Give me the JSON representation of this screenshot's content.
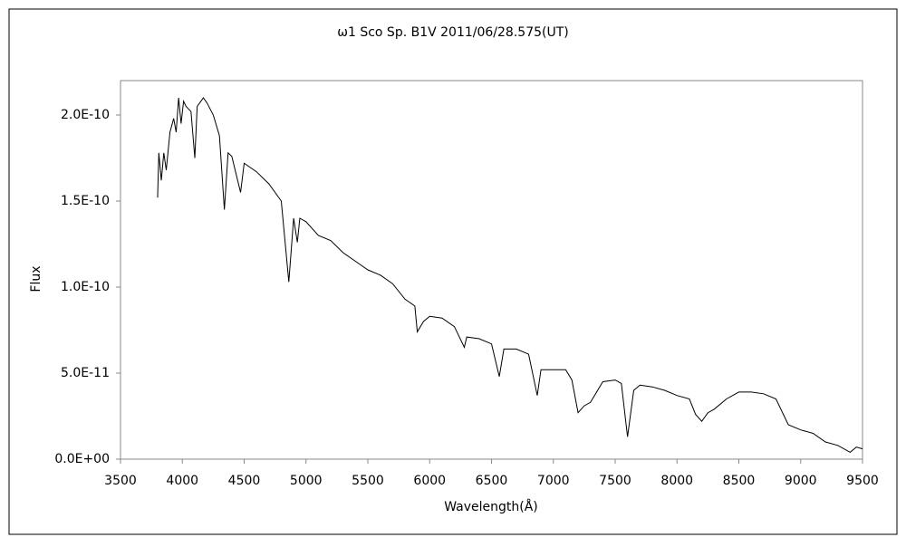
{
  "chart_data": {
    "type": "line",
    "title": "ω1 Sco   Sp. B1V   2011/06/28.575(UT)",
    "x_label": "Wavelength(Å)",
    "y_label": "Flux",
    "xlim": [
      3500,
      9500
    ],
    "xticks": [
      3500,
      4000,
      4500,
      5000,
      5500,
      6000,
      6500,
      7000,
      7500,
      8000,
      8500,
      9000,
      9500
    ],
    "ylim": [
      0,
      2.2e-10
    ],
    "yticks": [
      {
        "value": 0,
        "label": "0.0E+00"
      },
      {
        "value": 5e-11,
        "label": "5.0E-11"
      },
      {
        "value": 1e-10,
        "label": "1.0E-10"
      },
      {
        "value": 1.5e-10,
        "label": "1.5E-10"
      },
      {
        "value": 2e-10,
        "label": "2.0E-10"
      }
    ],
    "grid": false,
    "color": "#000000",
    "x": [
      3800,
      3810,
      3830,
      3850,
      3870,
      3900,
      3930,
      3950,
      3970,
      3990,
      4010,
      4030,
      4070,
      4101,
      4120,
      4150,
      4170,
      4200,
      4250,
      4300,
      4340,
      4370,
      4400,
      4471,
      4500,
      4600,
      4700,
      4800,
      4861,
      4900,
      4930,
      4950,
      5000,
      5100,
      5200,
      5300,
      5400,
      5500,
      5600,
      5700,
      5800,
      5880,
      5900,
      5950,
      6000,
      6100,
      6200,
      6280,
      6300,
      6400,
      6500,
      6563,
      6600,
      6700,
      6800,
      6870,
      6900,
      7000,
      7100,
      7150,
      7200,
      7250,
      7300,
      7400,
      7500,
      7550,
      7600,
      7650,
      7700,
      7800,
      7900,
      8000,
      8100,
      8150,
      8200,
      8250,
      8300,
      8400,
      8500,
      8600,
      8700,
      8800,
      8900,
      9000,
      9100,
      9200,
      9300,
      9400,
      9450,
      9500
    ],
    "values": [
      1.52e-10,
      1.78e-10,
      1.62e-10,
      1.78e-10,
      1.68e-10,
      1.9e-10,
      1.98e-10,
      1.9e-10,
      2.1e-10,
      1.95e-10,
      2.08e-10,
      2.05e-10,
      2.02e-10,
      1.75e-10,
      2.05e-10,
      2.08e-10,
      2.1e-10,
      2.07e-10,
      2e-10,
      1.88e-10,
      1.45e-10,
      1.78e-10,
      1.76e-10,
      1.55e-10,
      1.72e-10,
      1.67e-10,
      1.6e-10,
      1.5e-10,
      1.03e-10,
      1.4e-10,
      1.26e-10,
      1.4e-10,
      1.38e-10,
      1.3e-10,
      1.27e-10,
      1.2e-10,
      1.15e-10,
      1.1e-10,
      1.07e-10,
      1.02e-10,
      9.3e-11,
      8.9e-11,
      7.4e-11,
      8e-11,
      8.3e-11,
      8.2e-11,
      7.7e-11,
      6.5e-11,
      7.1e-11,
      7e-11,
      6.7e-11,
      4.8e-11,
      6.4e-11,
      6.4e-11,
      6.1e-11,
      3.7e-11,
      5.2e-11,
      5.2e-11,
      5.2e-11,
      4.6e-11,
      2.7e-11,
      3.1e-11,
      3.3e-11,
      4.5e-11,
      4.6e-11,
      4.4e-11,
      1.3e-11,
      4e-11,
      4.3e-11,
      4.2e-11,
      4e-11,
      3.7e-11,
      3.5e-11,
      2.6e-11,
      2.2e-11,
      2.7e-11,
      2.9e-11,
      3.5e-11,
      3.9e-11,
      3.9e-11,
      3.8e-11,
      3.5e-11,
      2e-11,
      1.7e-11,
      1.5e-11,
      1e-11,
      8e-12,
      4e-12,
      7e-12,
      6e-12
    ]
  }
}
